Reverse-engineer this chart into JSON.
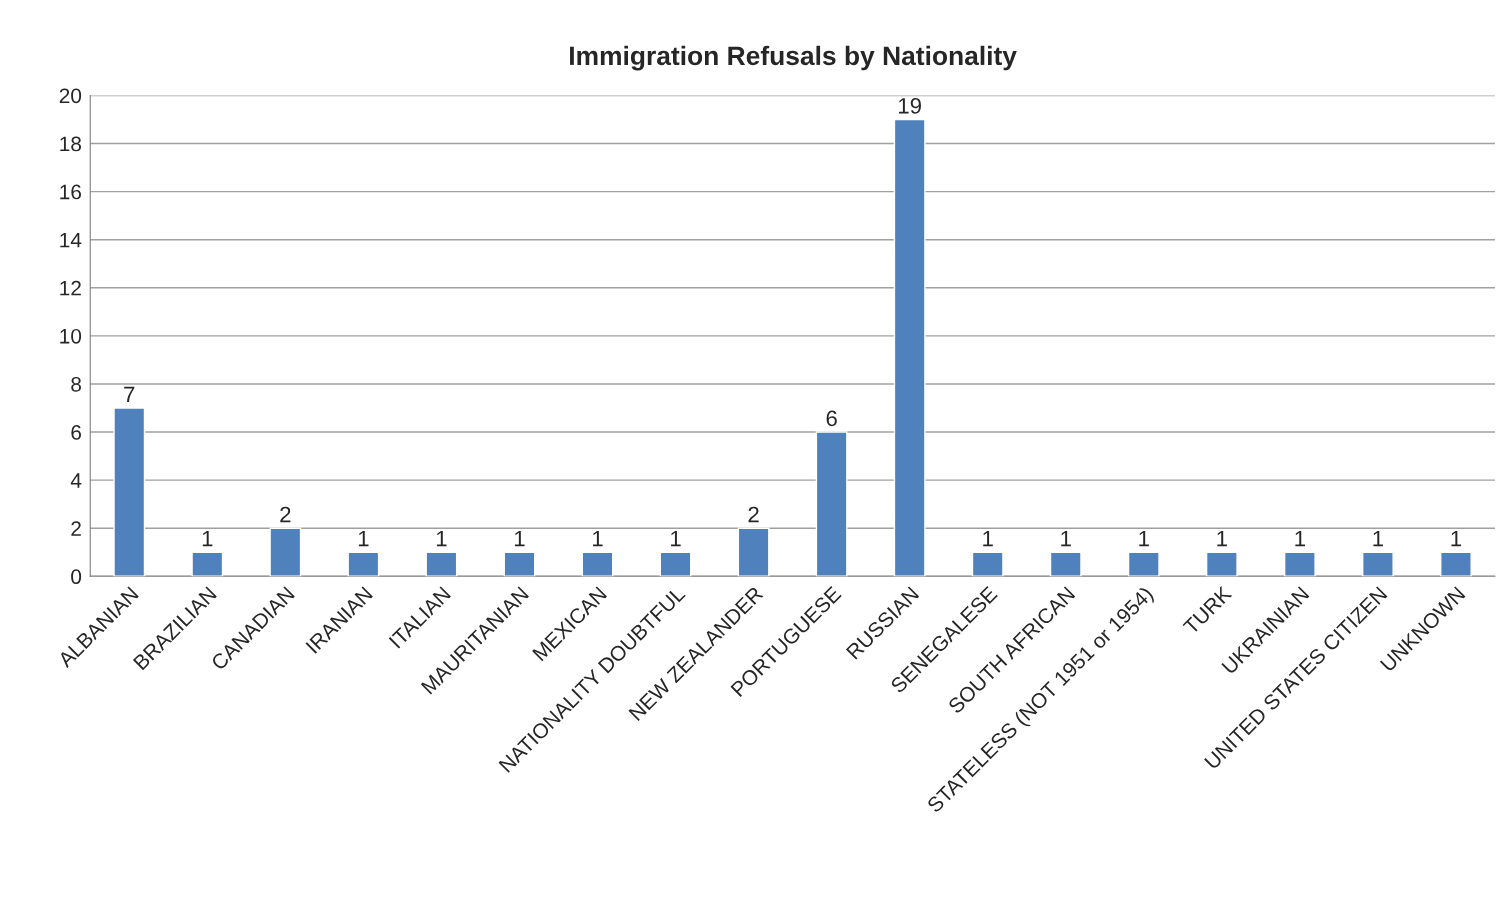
{
  "chart_data": {
    "type": "bar",
    "title": "Immigration Refusals by Nationality",
    "categories": [
      "ALBANIAN",
      "BRAZILIAN",
      "CANADIAN",
      "IRANIAN",
      "ITALIAN",
      "MAURITANIAN",
      "MEXICAN",
      "NATIONALITY DOUBTFUL",
      "NEW ZEALANDER",
      "PORTUGUESE",
      "RUSSIAN",
      "SENEGALESE",
      "SOUTH AFRICAN",
      "STATELESS (NOT 1951 or 1954)",
      "TURK",
      "UKRAINIAN",
      "UNITED STATES CITIZEN",
      "UNKNOWN"
    ],
    "values": [
      7,
      1,
      2,
      1,
      1,
      1,
      1,
      1,
      2,
      6,
      19,
      1,
      1,
      1,
      1,
      1,
      1,
      1
    ],
    "color": "#4f81bd",
    "ylim": [
      0,
      20
    ],
    "yticks": [
      0,
      2,
      4,
      6,
      8,
      10,
      12,
      14,
      16,
      18,
      20
    ],
    "grid": "y",
    "data_labels": true
  }
}
